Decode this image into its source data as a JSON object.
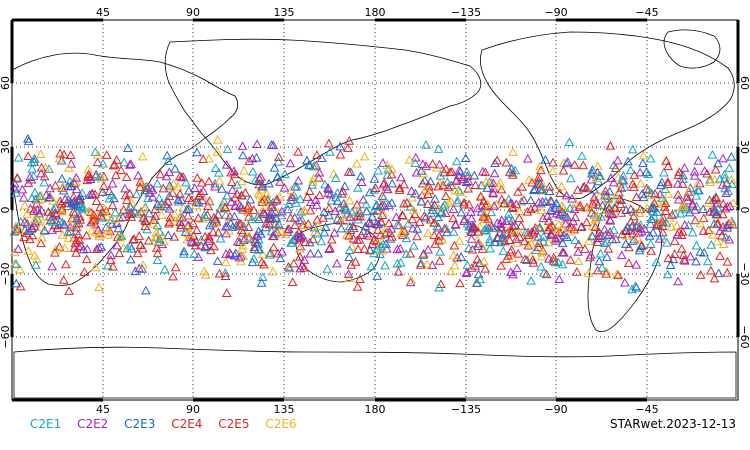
{
  "map": {
    "projection": "cylindrical",
    "lon_ticks": [
      "45",
      "90",
      "135",
      "180",
      "−135",
      "−90",
      "−45"
    ],
    "lat_ticks_left": [
      "60",
      "30",
      "0",
      "−30",
      "−60"
    ],
    "lat_ticks_right": [
      "60",
      "30",
      "0",
      "−30",
      "−60"
    ],
    "grid": "dotted",
    "marker": "triangle-outline",
    "observation_band_lat": [
      -45,
      40
    ]
  },
  "legend": {
    "items": [
      {
        "label": "C2E1",
        "color": "#17a6c4"
      },
      {
        "label": "C2E2",
        "color": "#a323c9"
      },
      {
        "label": "C2E3",
        "color": "#1f63d6"
      },
      {
        "label": "C2E4",
        "color": "#d7262b"
      },
      {
        "label": "C2E5",
        "color": "#e3241c"
      },
      {
        "label": "C2E6",
        "color": "#f2b21b"
      }
    ]
  },
  "credit": "STARwet.2023-12-13"
}
